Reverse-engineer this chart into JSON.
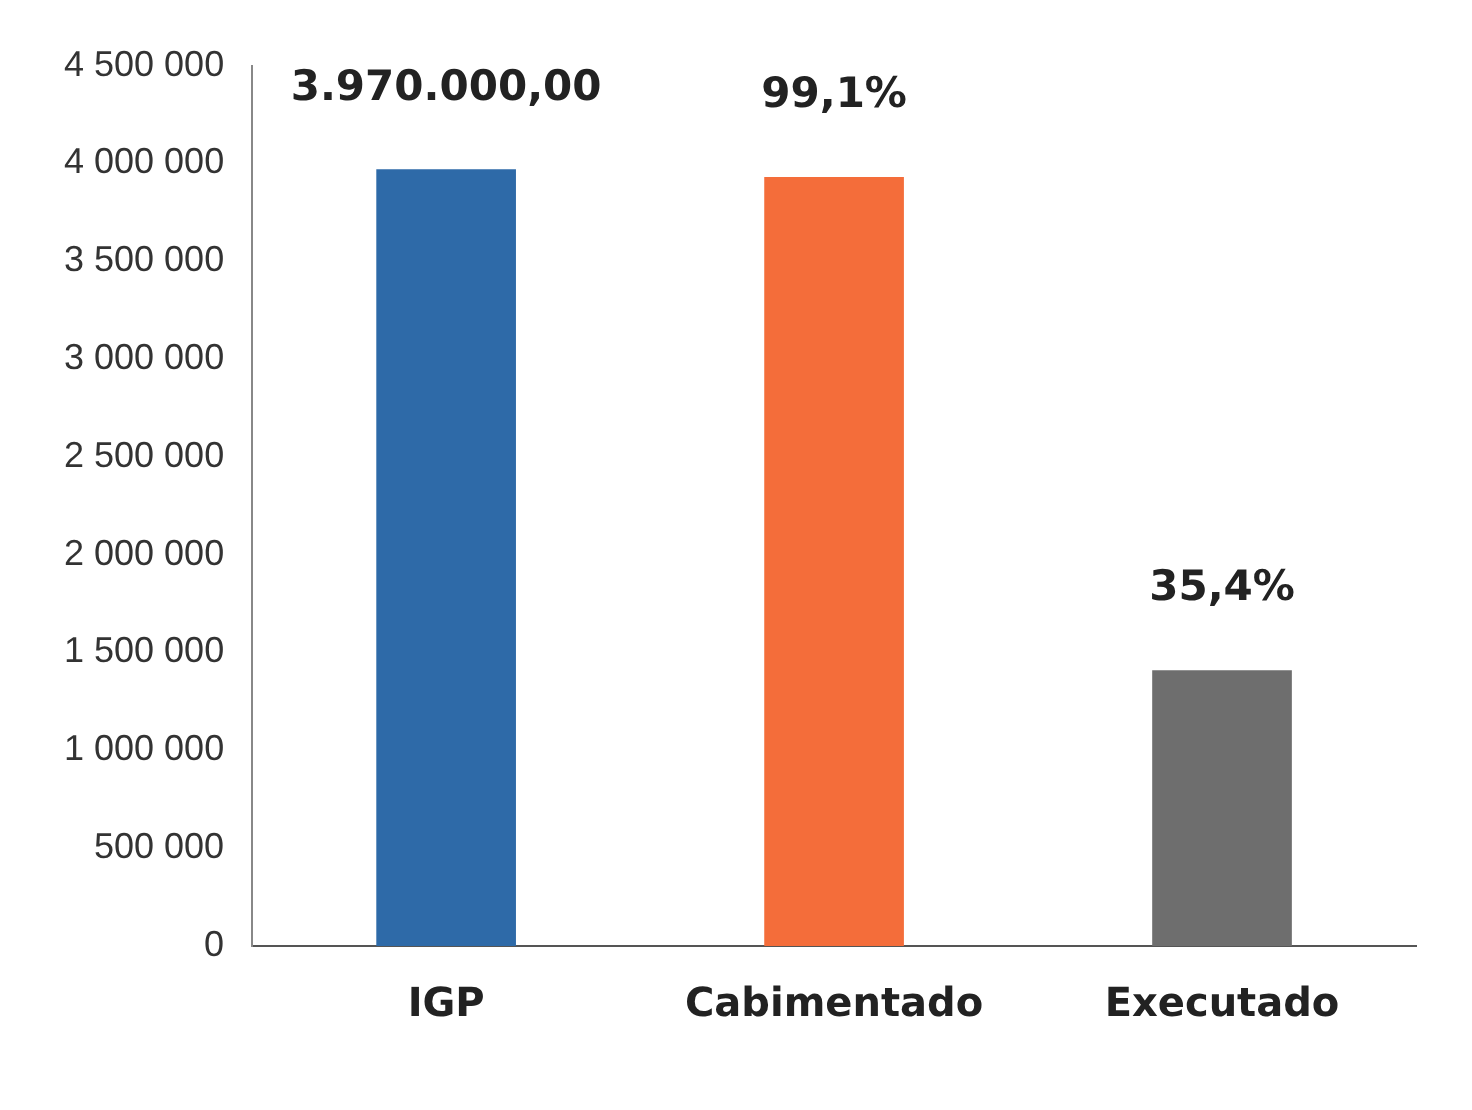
{
  "chart_data": {
    "type": "bar",
    "categories": [
      "IGP",
      "Cabimentado",
      "Executado"
    ],
    "values": [
      3970000,
      3930000,
      1410000
    ],
    "colors": [
      "#2e6aa8",
      "#f46d3a",
      "#6e6e6e"
    ],
    "annotations": [
      {
        "text": "3.970.000,00",
        "x": "IGP",
        "y": 3970000
      },
      {
        "text": "99,1%",
        "x": "Cabimentado",
        "y": 3930000
      },
      {
        "text": "35,4%",
        "x": "Executado",
        "y": 1410000
      }
    ],
    "ylim": [
      0,
      4500000
    ],
    "yticks": [
      {
        "value": 0,
        "label": "0"
      },
      {
        "value": 500000,
        "label": "500 000"
      },
      {
        "value": 1000000,
        "label": "1 000 000"
      },
      {
        "value": 1500000,
        "label": "1 500 000"
      },
      {
        "value": 2000000,
        "label": "2 000 000"
      },
      {
        "value": 2500000,
        "label": "2 500 000"
      },
      {
        "value": 3000000,
        "label": "3 000 000"
      },
      {
        "value": 3500000,
        "label": "3 500 000"
      },
      {
        "value": 4000000,
        "label": "4 000 000"
      },
      {
        "value": 4500000,
        "label": "4 500 000"
      }
    ],
    "grid": false,
    "legend": false
  }
}
